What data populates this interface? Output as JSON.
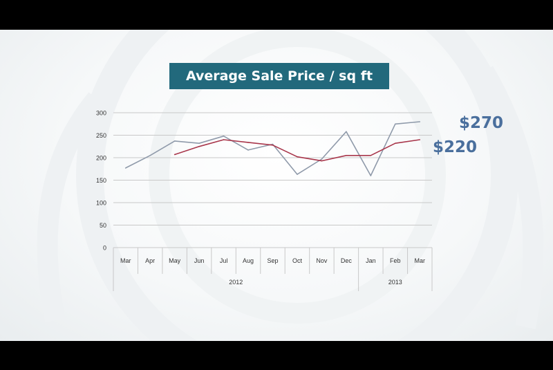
{
  "chart_data": {
    "type": "line",
    "title": "Average Sale Price / sq ft",
    "categories": [
      "Mar",
      "Apr",
      "May",
      "Jun",
      "Jul",
      "Aug",
      "Sep",
      "Oct",
      "Nov",
      "Dec",
      "Jan",
      "Feb",
      "Mar"
    ],
    "year_groups": [
      {
        "label": "2012",
        "span": 10
      },
      {
        "label": "2013",
        "span": 3
      }
    ],
    "ylim": [
      0,
      300
    ],
    "yticks": [
      "0",
      "50",
      "100",
      "150",
      "200",
      "250",
      "300"
    ],
    "grid": true,
    "series": [
      {
        "color": "#8f9aaa",
        "values": [
          177,
          205,
          237,
          232,
          248,
          217,
          230,
          163,
          197,
          258,
          160,
          275,
          280
        ]
      },
      {
        "color": "#a8354a",
        "values": [
          null,
          null,
          207,
          225,
          240,
          234,
          228,
          202,
          193,
          205,
          205,
          232,
          240
        ]
      }
    ],
    "annotations": [
      "$270",
      "$220"
    ]
  }
}
